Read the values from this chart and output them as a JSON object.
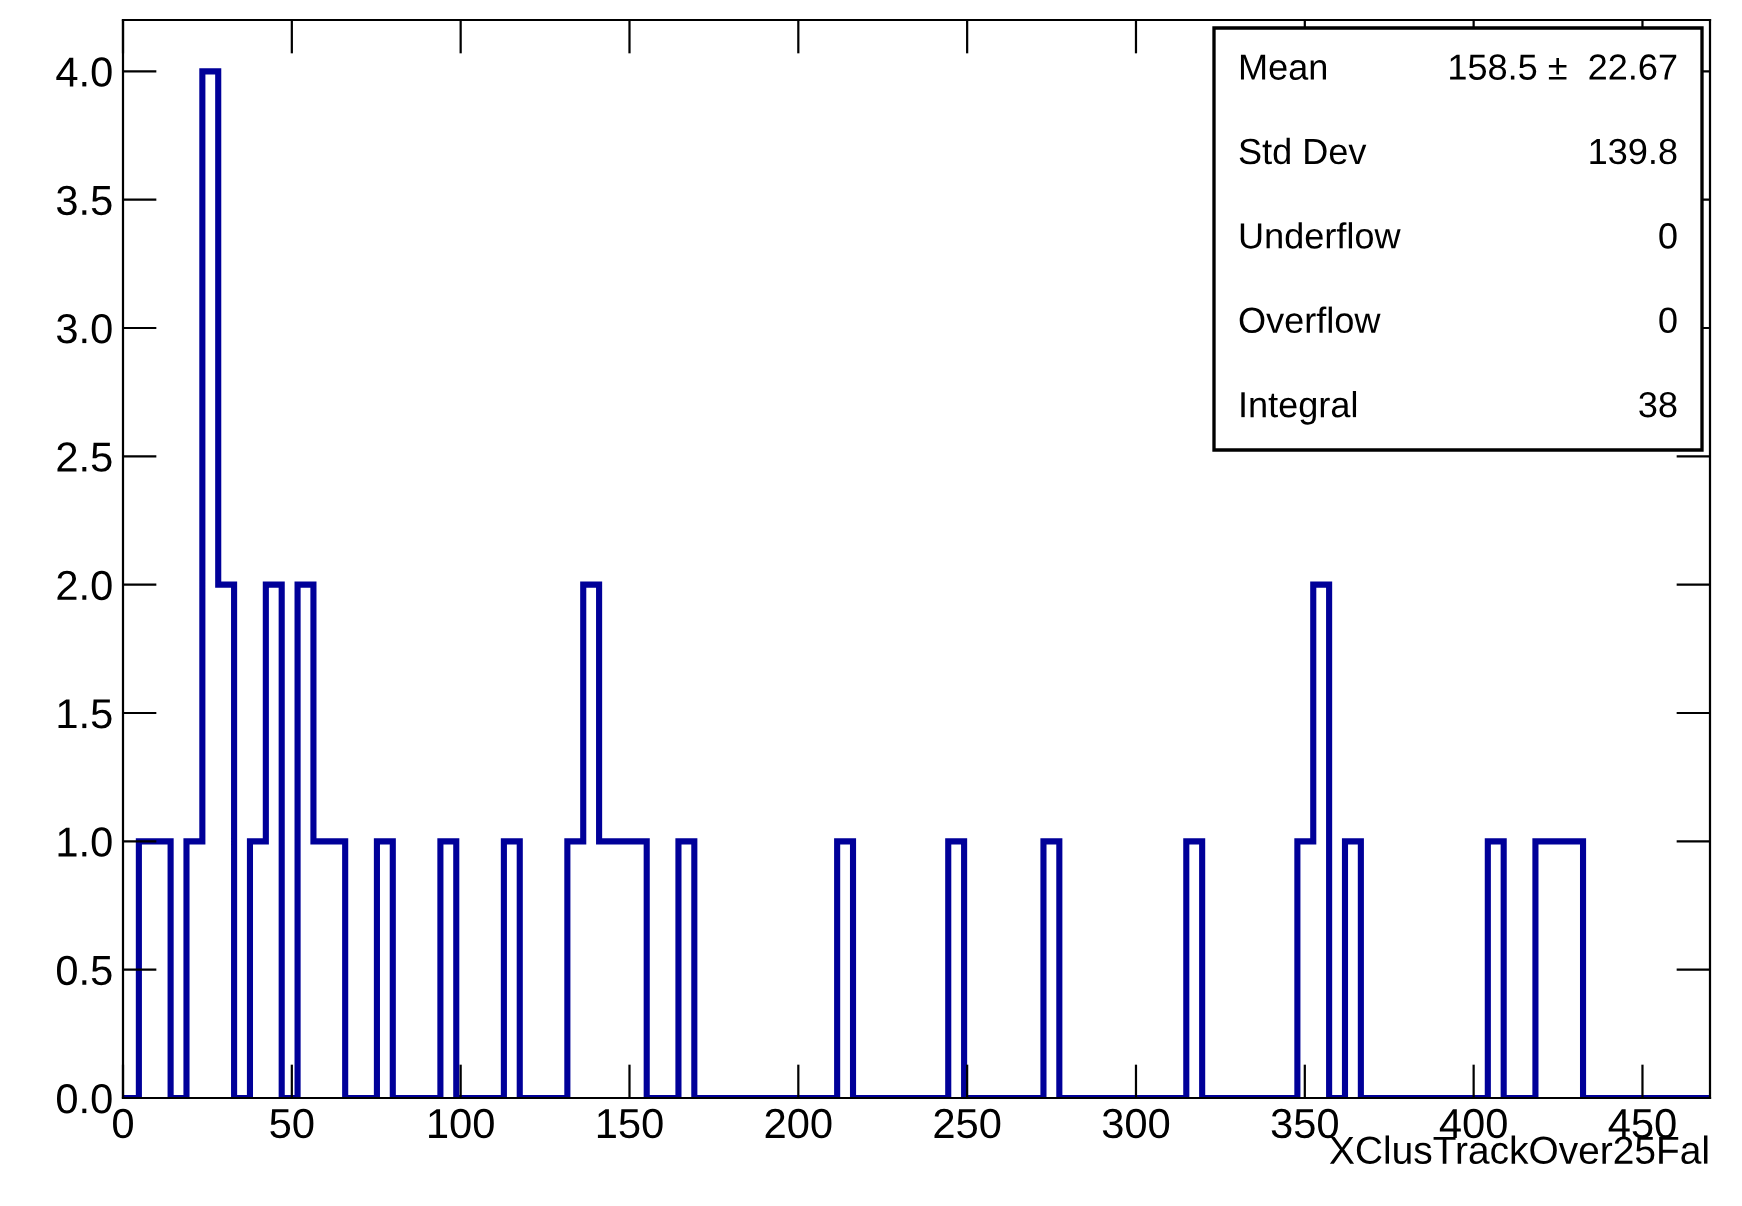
{
  "chart_data": {
    "type": "histogram",
    "xlabel": "XClusTrackOver25Fal",
    "bins": [
      0,
      4.7,
      9.4,
      14.1,
      18.8,
      23.5,
      28.2,
      32.9,
      37.6,
      42.3,
      47,
      51.7,
      56.4,
      61.1,
      65.8,
      70.5,
      75.2,
      79.9,
      84.6,
      89.3,
      94,
      98.7,
      103.4,
      108.1,
      112.8,
      117.5,
      122.2,
      126.9,
      131.6,
      136.3,
      141,
      145.7,
      150.4,
      155.1,
      159.8,
      164.5,
      169.2,
      173.9,
      178.6,
      183.3,
      188,
      192.7,
      197.4,
      202.1,
      206.8,
      211.5,
      216.2,
      220.9,
      225.6,
      230.3,
      235,
      239.7,
      244.4,
      249.1,
      253.8,
      258.5,
      263.2,
      267.9,
      272.6,
      277.3,
      282,
      286.7,
      291.4,
      296.1,
      300.8,
      305.5,
      310.2,
      314.9,
      319.6,
      324.3,
      329,
      333.7,
      338.4,
      343.1,
      347.8,
      352.5,
      357.2,
      361.9,
      366.6,
      371.3,
      376,
      380.7,
      385.4,
      390.1,
      394.8,
      399.5,
      404.2,
      408.9,
      413.6,
      418.3,
      423,
      427.7,
      432.4,
      437.1,
      441.8,
      446.5,
      451.2,
      455.9,
      460.6,
      465.3,
      470
    ],
    "values": [
      0,
      1,
      1,
      0,
      1,
      4,
      2,
      0,
      1,
      2,
      0,
      2,
      1,
      1,
      0,
      0,
      1,
      0,
      0,
      0,
      1,
      0,
      0,
      0,
      1,
      0,
      0,
      0,
      1,
      2,
      1,
      1,
      1,
      0,
      0,
      1,
      0,
      0,
      0,
      0,
      0,
      0,
      0,
      0,
      0,
      1,
      0,
      0,
      0,
      0,
      0,
      0,
      1,
      0,
      0,
      0,
      0,
      0,
      1,
      0,
      0,
      0,
      0,
      0,
      0,
      0,
      0,
      1,
      0,
      0,
      0,
      0,
      0,
      0,
      1,
      2,
      0,
      1,
      0,
      0,
      0,
      0,
      0,
      0,
      0,
      0,
      1,
      0,
      0,
      1,
      1,
      1,
      0,
      0,
      0,
      0,
      0,
      0,
      0,
      0
    ],
    "color": "#000099",
    "xlim": [
      0,
      470
    ],
    "xticks": [
      0,
      50,
      100,
      150,
      200,
      250,
      300,
      350,
      400,
      450
    ],
    "ylim": [
      0,
      4.2
    ],
    "yticks": [
      {
        "value": 0,
        "label": "0.0"
      },
      {
        "value": 0.5,
        "label": "0.5"
      },
      {
        "value": 1,
        "label": "1.0"
      },
      {
        "value": 1.5,
        "label": "1.5"
      },
      {
        "value": 2,
        "label": "2.0"
      },
      {
        "value": 2.5,
        "label": "2.5"
      },
      {
        "value": 3,
        "label": "3.0"
      },
      {
        "value": 3.5,
        "label": "3.5"
      },
      {
        "value": 4,
        "label": "4.0"
      }
    ],
    "grid": false,
    "annotations": [
      "Mean",
      "158.5 ±  22.67",
      "Std Dev",
      "139.8",
      "Underflow",
      "0",
      "Overflow",
      "0",
      "Integral",
      "38"
    ]
  }
}
